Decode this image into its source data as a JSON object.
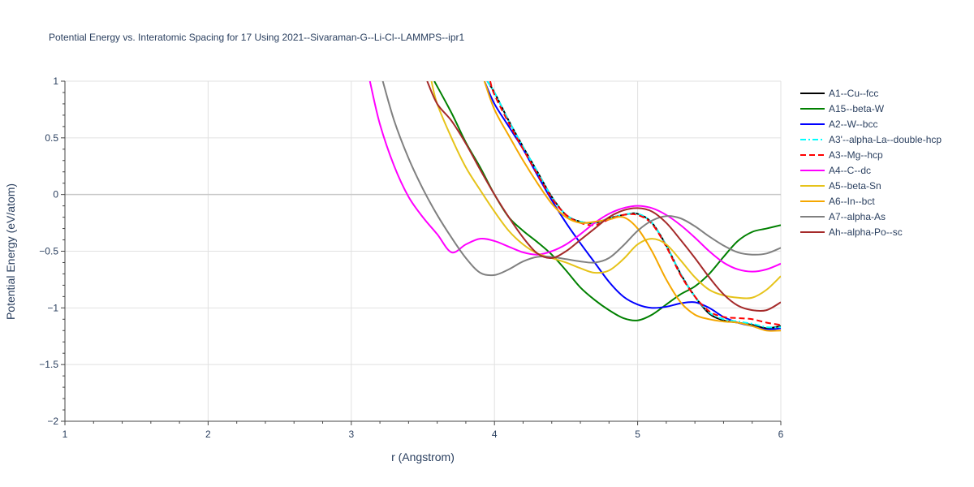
{
  "chart_data": {
    "type": "line",
    "title": "Potential Energy vs. Interatomic Spacing for 17 Using 2021--Sivaraman-G--Li-Cl--LAMMPS--ipr1",
    "xlabel": "r (Angstrom)",
    "ylabel": "Potential Energy (eV/atom)",
    "xlim": [
      1,
      6
    ],
    "ylim": [
      -2,
      1
    ],
    "xticks": [
      1,
      2,
      3,
      4,
      5,
      6
    ],
    "xtick_labels": [
      "1",
      "2",
      "3",
      "4",
      "5",
      "6"
    ],
    "yticks": [
      -2,
      -1.5,
      -1,
      -0.5,
      0,
      0.5,
      1
    ],
    "ytick_labels": [
      "−2",
      "−1.5",
      "−1",
      "−0.5",
      "0",
      "0.5",
      "1"
    ],
    "grid": true,
    "legend_position": "right",
    "series": [
      {
        "name": "A1--Cu--fcc",
        "color": "#000000",
        "dash": "solid",
        "x": [
          3.95,
          4.0,
          4.1,
          4.2,
          4.3,
          4.4,
          4.5,
          4.6,
          4.7,
          4.8,
          4.9,
          5.0,
          5.1,
          5.2,
          5.3,
          5.4,
          5.5,
          5.6,
          5.7,
          5.8,
          5.9,
          6.0
        ],
        "y": [
          1.0,
          0.9,
          0.65,
          0.42,
          0.2,
          -0.02,
          -0.18,
          -0.24,
          -0.25,
          -0.21,
          -0.18,
          -0.17,
          -0.25,
          -0.45,
          -0.7,
          -0.9,
          -1.05,
          -1.11,
          -1.13,
          -1.15,
          -1.18,
          -1.16
        ]
      },
      {
        "name": "A15--beta-W",
        "color": "#008000",
        "dash": "solid",
        "x": [
          3.58,
          3.7,
          3.8,
          3.9,
          4.0,
          4.1,
          4.2,
          4.3,
          4.4,
          4.5,
          4.6,
          4.7,
          4.8,
          4.9,
          5.0,
          5.1,
          5.2,
          5.3,
          5.4,
          5.5,
          5.6,
          5.7,
          5.8,
          5.9,
          6.0
        ],
        "y": [
          1.0,
          0.72,
          0.46,
          0.24,
          0.0,
          -0.2,
          -0.32,
          -0.42,
          -0.53,
          -0.67,
          -0.82,
          -0.93,
          -1.02,
          -1.09,
          -1.11,
          -1.06,
          -0.97,
          -0.88,
          -0.81,
          -0.7,
          -0.55,
          -0.41,
          -0.33,
          -0.3,
          -0.27
        ]
      },
      {
        "name": "A2--W--bcc",
        "color": "#0000ff",
        "dash": "solid",
        "x": [
          3.93,
          4.0,
          4.1,
          4.2,
          4.3,
          4.4,
          4.5,
          4.6,
          4.7,
          4.8,
          4.9,
          5.0,
          5.1,
          5.2,
          5.3,
          5.4,
          5.5,
          5.6,
          5.7,
          5.8,
          5.9,
          6.0
        ],
        "y": [
          1.0,
          0.8,
          0.6,
          0.4,
          0.17,
          -0.05,
          -0.25,
          -0.43,
          -0.6,
          -0.77,
          -0.9,
          -0.97,
          -1.0,
          -0.99,
          -0.96,
          -0.95,
          -1.0,
          -1.08,
          -1.13,
          -1.16,
          -1.19,
          -1.18
        ]
      },
      {
        "name": "A3'--alpha-La--double-hcp",
        "color": "#00ffff",
        "dash": "dashdot",
        "x": [
          3.95,
          4.0,
          4.1,
          4.2,
          4.3,
          4.4,
          4.5,
          4.6,
          4.7,
          4.8,
          4.9,
          5.0,
          5.1,
          5.2,
          5.3,
          5.4,
          5.5,
          5.6,
          5.7,
          5.8,
          5.9,
          6.0
        ],
        "y": [
          1.0,
          0.9,
          0.65,
          0.42,
          0.2,
          -0.02,
          -0.18,
          -0.24,
          -0.25,
          -0.21,
          -0.18,
          -0.17,
          -0.25,
          -0.45,
          -0.7,
          -0.9,
          -1.04,
          -1.1,
          -1.12,
          -1.14,
          -1.17,
          -1.17
        ]
      },
      {
        "name": "A3--Mg--hcp",
        "color": "#ff0000",
        "dash": "dash",
        "x": [
          3.97,
          4.0,
          4.1,
          4.2,
          4.3,
          4.4,
          4.5,
          4.6,
          4.7,
          4.8,
          4.9,
          5.0,
          5.1,
          5.2,
          5.3,
          5.4,
          5.5,
          5.6,
          5.7,
          5.8,
          5.9,
          6.0
        ],
        "y": [
          1.0,
          0.88,
          0.63,
          0.4,
          0.18,
          -0.03,
          -0.18,
          -0.25,
          -0.27,
          -0.22,
          -0.18,
          -0.18,
          -0.26,
          -0.46,
          -0.71,
          -0.9,
          -1.03,
          -1.08,
          -1.09,
          -1.1,
          -1.13,
          -1.15
        ]
      },
      {
        "name": "A4--C--dc",
        "color": "#ff00ff",
        "dash": "solid",
        "x": [
          3.13,
          3.2,
          3.3,
          3.4,
          3.5,
          3.6,
          3.7,
          3.8,
          3.9,
          4.0,
          4.1,
          4.2,
          4.3,
          4.4,
          4.5,
          4.6,
          4.7,
          4.8,
          4.9,
          5.0,
          5.1,
          5.2,
          5.3,
          5.4,
          5.5,
          5.6,
          5.7,
          5.8,
          5.9,
          6.0
        ],
        "y": [
          1.0,
          0.62,
          0.25,
          -0.02,
          -0.2,
          -0.35,
          -0.51,
          -0.44,
          -0.39,
          -0.41,
          -0.46,
          -0.51,
          -0.53,
          -0.5,
          -0.44,
          -0.35,
          -0.25,
          -0.17,
          -0.12,
          -0.1,
          -0.12,
          -0.18,
          -0.27,
          -0.38,
          -0.5,
          -0.6,
          -0.66,
          -0.68,
          -0.66,
          -0.61
        ]
      },
      {
        "name": "A5--beta-Sn",
        "color": "#e6c31a",
        "dash": "solid",
        "x": [
          3.56,
          3.6,
          3.7,
          3.8,
          3.9,
          4.0,
          4.1,
          4.2,
          4.3,
          4.4,
          4.5,
          4.6,
          4.7,
          4.8,
          4.9,
          5.0,
          5.1,
          5.2,
          5.3,
          5.4,
          5.5,
          5.6,
          5.7,
          5.8,
          5.9,
          6.0
        ],
        "y": [
          1.0,
          0.8,
          0.5,
          0.24,
          0.04,
          -0.15,
          -0.32,
          -0.44,
          -0.52,
          -0.56,
          -0.6,
          -0.65,
          -0.69,
          -0.67,
          -0.57,
          -0.44,
          -0.39,
          -0.44,
          -0.58,
          -0.73,
          -0.84,
          -0.89,
          -0.91,
          -0.91,
          -0.84,
          -0.72
        ]
      },
      {
        "name": "A6--In--bct",
        "color": "#f5a700",
        "dash": "solid",
        "x": [
          3.93,
          4.0,
          4.1,
          4.2,
          4.3,
          4.4,
          4.5,
          4.6,
          4.7,
          4.8,
          4.9,
          5.0,
          5.1,
          5.2,
          5.3,
          5.4,
          5.5,
          5.6,
          5.7,
          5.8,
          5.9,
          6.0
        ],
        "y": [
          1.0,
          0.75,
          0.52,
          0.3,
          0.1,
          -0.08,
          -0.2,
          -0.25,
          -0.24,
          -0.22,
          -0.2,
          -0.3,
          -0.5,
          -0.75,
          -0.95,
          -1.06,
          -1.1,
          -1.12,
          -1.13,
          -1.16,
          -1.2,
          -1.2
        ]
      },
      {
        "name": "A7--alpha-As",
        "color": "#808080",
        "dash": "solid",
        "x": [
          3.22,
          3.3,
          3.4,
          3.5,
          3.6,
          3.7,
          3.8,
          3.9,
          4.0,
          4.1,
          4.2,
          4.3,
          4.4,
          4.5,
          4.6,
          4.7,
          4.8,
          4.9,
          5.0,
          5.1,
          5.2,
          5.3,
          5.4,
          5.5,
          5.6,
          5.7,
          5.8,
          5.9,
          6.0
        ],
        "y": [
          1.0,
          0.65,
          0.32,
          0.05,
          -0.18,
          -0.38,
          -0.56,
          -0.69,
          -0.71,
          -0.66,
          -0.59,
          -0.55,
          -0.55,
          -0.57,
          -0.59,
          -0.6,
          -0.56,
          -0.45,
          -0.32,
          -0.23,
          -0.19,
          -0.21,
          -0.28,
          -0.37,
          -0.45,
          -0.51,
          -0.53,
          -0.52,
          -0.47
        ]
      },
      {
        "name": "Ah--alpha-Po--sc",
        "color": "#a52a2a",
        "dash": "solid",
        "x": [
          3.53,
          3.6,
          3.7,
          3.8,
          3.9,
          4.0,
          4.1,
          4.2,
          4.3,
          4.4,
          4.5,
          4.6,
          4.7,
          4.8,
          4.9,
          5.0,
          5.1,
          5.2,
          5.3,
          5.4,
          5.5,
          5.6,
          5.7,
          5.8,
          5.9,
          6.0
        ],
        "y": [
          1.0,
          0.8,
          0.65,
          0.45,
          0.22,
          0.0,
          -0.2,
          -0.38,
          -0.52,
          -0.56,
          -0.5,
          -0.4,
          -0.3,
          -0.2,
          -0.14,
          -0.12,
          -0.15,
          -0.25,
          -0.4,
          -0.56,
          -0.73,
          -0.88,
          -0.98,
          -1.02,
          -1.02,
          -0.95
        ]
      }
    ]
  }
}
